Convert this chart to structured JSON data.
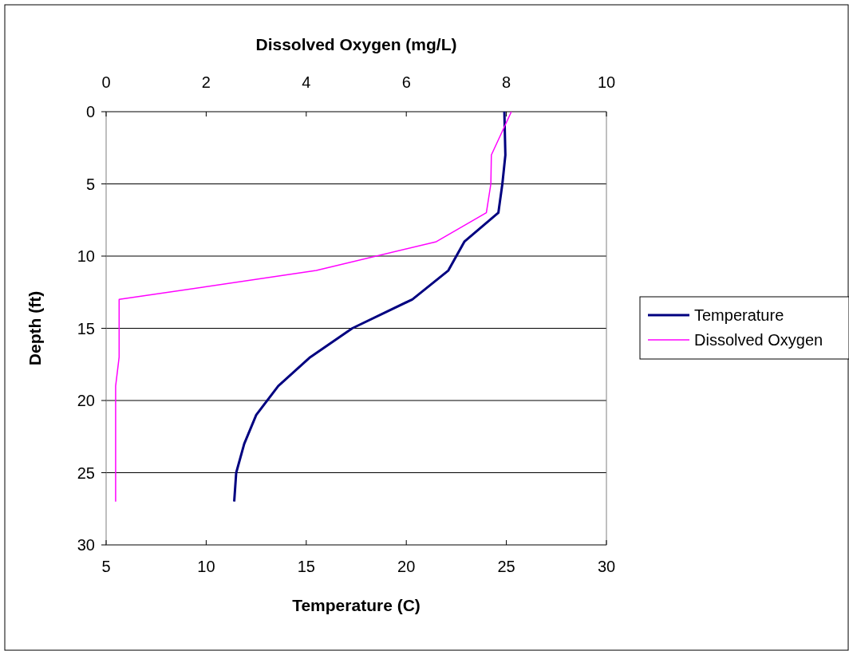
{
  "chart_data": {
    "type": "line",
    "xlabel": "Temperature (C)",
    "x2label": "Dissolved Oxygen (mg/L)",
    "ylabel": "Depth (ft)",
    "xlim": [
      5,
      30
    ],
    "xticks": [
      5,
      10,
      15,
      20,
      25,
      30
    ],
    "x2lim": [
      0,
      10
    ],
    "x2ticks": [
      0,
      2,
      4,
      6,
      8,
      10
    ],
    "ylim": [
      30,
      0
    ],
    "yticks": [
      0,
      5,
      10,
      15,
      20,
      25,
      30
    ],
    "grid": "y",
    "legend": "right",
    "series": [
      {
        "name": "Temperature",
        "color": "#000080",
        "x": [
          24.9,
          24.95,
          24.8,
          24.6,
          22.9,
          22.1,
          20.3,
          17.3,
          15.2,
          13.6,
          12.5,
          11.9,
          11.5,
          11.4
        ],
        "values": [
          0,
          3,
          5,
          7,
          9,
          11,
          13,
          15,
          17,
          19,
          21,
          23,
          25,
          27
        ]
      },
      {
        "name": "Dissolved Oxygen",
        "color": "#ff00ff",
        "axis": "x2",
        "x": [
          8.1,
          7.7,
          7.69,
          7.6,
          6.6,
          4.2,
          0.26,
          0.26,
          0.26,
          0.19,
          0.19,
          0.19,
          0.19,
          0.19
        ],
        "values": [
          0,
          3,
          5,
          7,
          9,
          11,
          13,
          15,
          17,
          19,
          21,
          23,
          25,
          27
        ]
      }
    ]
  }
}
